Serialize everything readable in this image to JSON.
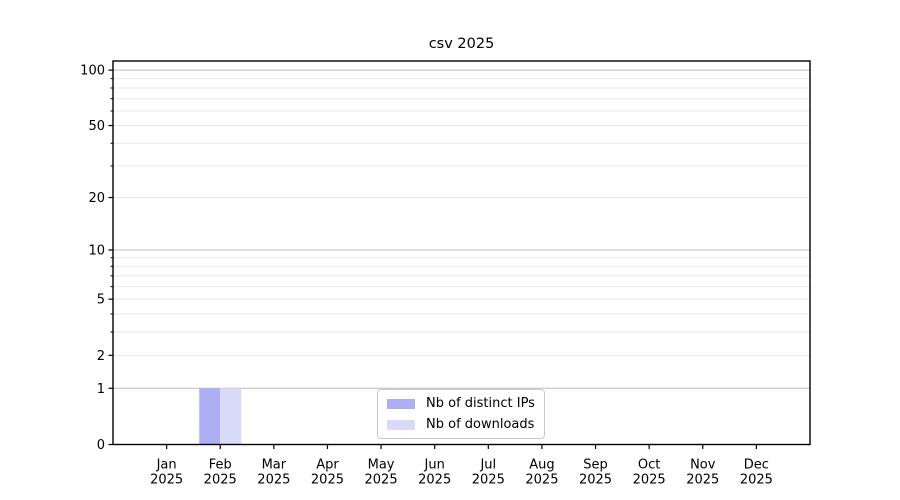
{
  "chart_data": {
    "type": "bar",
    "title": "csv 2025",
    "categories": [
      {
        "month": "Jan",
        "year": "2025"
      },
      {
        "month": "Feb",
        "year": "2025"
      },
      {
        "month": "Mar",
        "year": "2025"
      },
      {
        "month": "Apr",
        "year": "2025"
      },
      {
        "month": "May",
        "year": "2025"
      },
      {
        "month": "Jun",
        "year": "2025"
      },
      {
        "month": "Jul",
        "year": "2025"
      },
      {
        "month": "Aug",
        "year": "2025"
      },
      {
        "month": "Sep",
        "year": "2025"
      },
      {
        "month": "Oct",
        "year": "2025"
      },
      {
        "month": "Nov",
        "year": "2025"
      },
      {
        "month": "Dec",
        "year": "2025"
      }
    ],
    "series": [
      {
        "name": "Nb of distinct IPs",
        "color": "#aeaff3",
        "values": [
          0,
          1,
          0,
          0,
          0,
          0,
          0,
          0,
          0,
          0,
          0,
          0
        ]
      },
      {
        "name": "Nb of downloads",
        "color": "#d9daf7",
        "values": [
          0,
          1,
          0,
          0,
          0,
          0,
          0,
          0,
          0,
          0,
          0,
          0
        ]
      }
    ],
    "xlabel": "",
    "ylabel": "",
    "y_scale": "log1p",
    "y_major_ticks": [
      0,
      1,
      2,
      5,
      10,
      20,
      50,
      100
    ],
    "y_minor_ticks": [
      3,
      4,
      6,
      7,
      8,
      9,
      30,
      40,
      60,
      70,
      80,
      90
    ],
    "ylim": [
      0,
      112
    ],
    "grid": "horizontal",
    "legend_position": "lower center inside",
    "colors": {
      "grid_major": "#bcbcbc",
      "grid_minor": "#e9e9e9",
      "axis": "#000000",
      "text": "#000000",
      "background": "#ffffff",
      "legend_border": "#c8c8c8"
    }
  }
}
